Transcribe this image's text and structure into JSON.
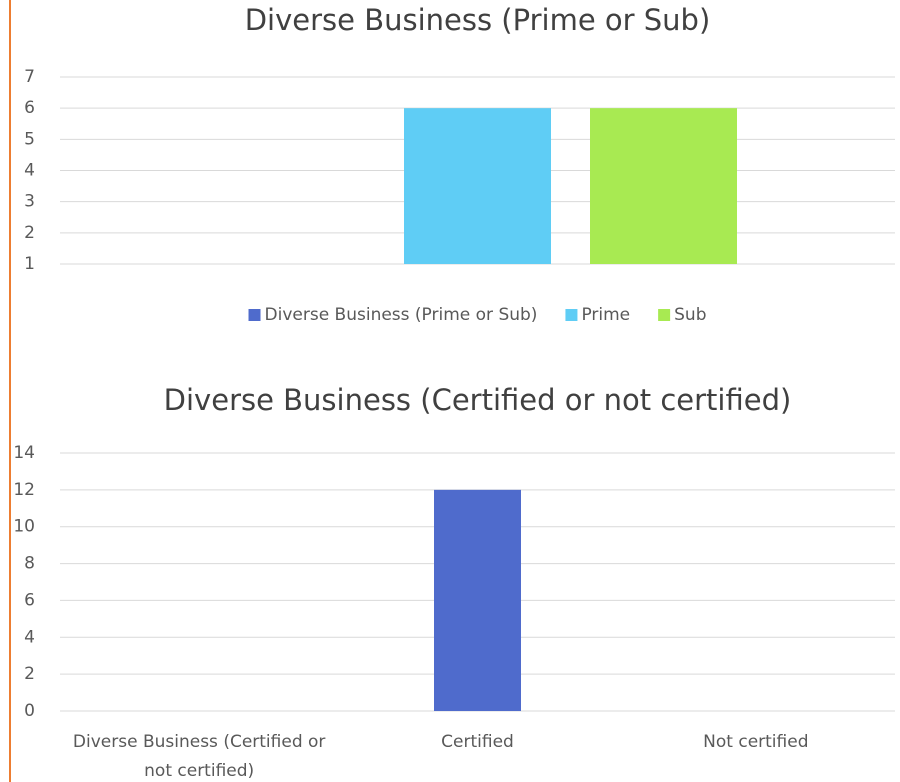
{
  "chart_data": [
    {
      "type": "bar",
      "title": "Diverse Business (Prime or Sub)",
      "categories": [
        null
      ],
      "series": [
        {
          "name": "Diverse Business (Prime or Sub)",
          "color": "#4f6bcc",
          "values": [
            null
          ]
        },
        {
          "name": "Prime",
          "color": "#5fcdf5",
          "values": [
            6
          ]
        },
        {
          "name": "Sub",
          "color": "#a8ea52",
          "values": [
            6
          ]
        }
      ],
      "ylim": [
        1,
        7
      ],
      "yticks": [
        1,
        2,
        3,
        4,
        5,
        6,
        7
      ],
      "grid": true,
      "legend": "bottom"
    },
    {
      "type": "bar",
      "title": "Diverse Business (Certified or not certified)",
      "categories": [
        "Diverse Business (Certified or not certified)",
        "Certified",
        "Not certified"
      ],
      "values": [
        null,
        12,
        null
      ],
      "color": "#4f6bcc",
      "ylim": [
        0,
        14
      ],
      "yticks": [
        0,
        2,
        4,
        6,
        8,
        10,
        12,
        14
      ],
      "grid": true
    }
  ]
}
